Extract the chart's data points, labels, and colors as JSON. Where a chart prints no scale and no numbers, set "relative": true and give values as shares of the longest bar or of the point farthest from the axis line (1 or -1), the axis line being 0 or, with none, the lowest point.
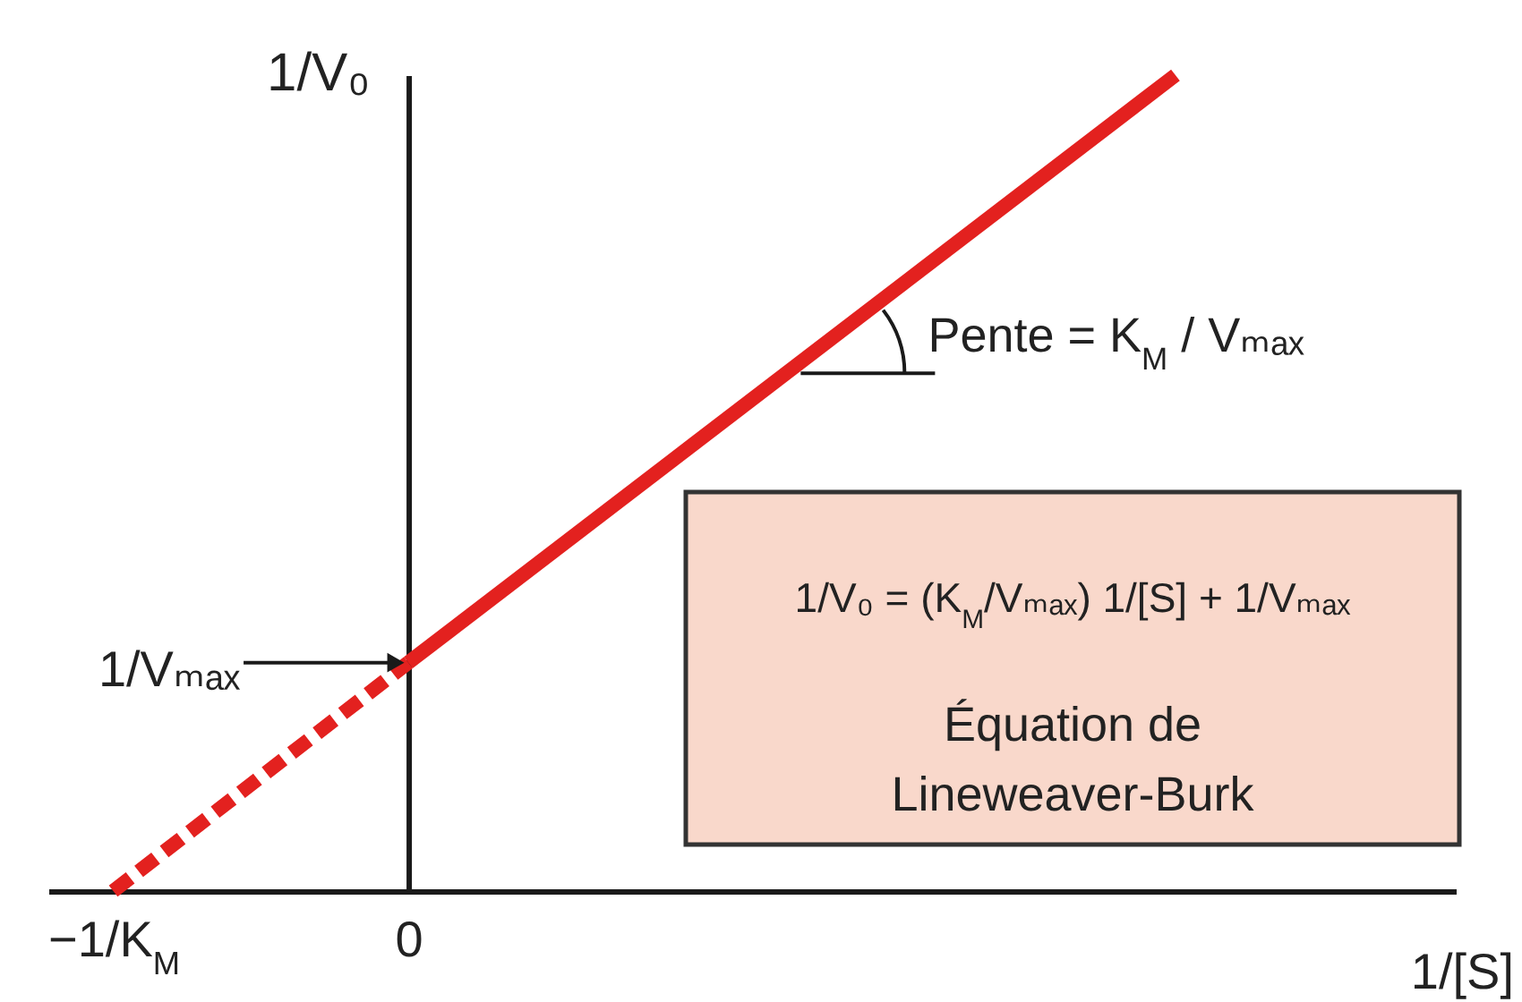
{
  "chart_data": {
    "type": "line",
    "xlabel": "1/[S]",
    "ylabel": "1/V₀",
    "relative": true,
    "tick_labels": "x",
    "xlim": [
      -1.22,
      3.55
    ],
    "xticks": [
      {
        "value": -1,
        "label": "−1/K$_{M}$"
      },
      0
    ],
    "series": [
      {
        "color": "#e3211f",
        "line_style": "dashed",
        "x": [
          -1,
          0
        ],
        "values": [
          0,
          0.28
        ]
      },
      {
        "color": "#e3211f",
        "line_style": "solid",
        "x": [
          0,
          2.6
        ],
        "values": [
          0.28,
          1
        ]
      }
    ],
    "annotations": [
      {
        "text": "1/Vₘₐₓ",
        "x": 0,
        "y": 0.28
      },
      {
        "text": "Pente = K$_{M}$ / Vₘₐₓ",
        "x": 1.33,
        "y": 0.65
      },
      "1/V₀ = (K$_{M}$/Vₘₐₓ) 1/[S] + 1/Vₘₐₓ",
      "Équation de Lineweaver-Burk"
    ]
  }
}
